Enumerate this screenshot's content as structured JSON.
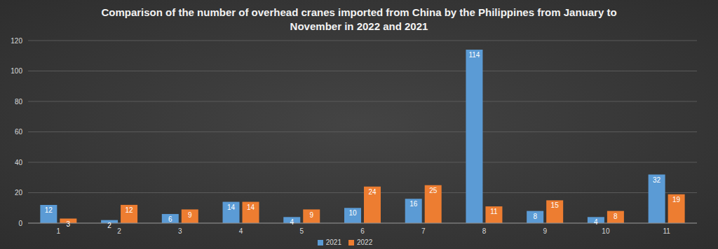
{
  "chart_data": {
    "type": "bar",
    "title": "Comparison of the number of overhead cranes imported from China by the Philippines from January to November in 2022 and 2021",
    "categories": [
      "1",
      "2",
      "3",
      "4",
      "5",
      "6",
      "7",
      "8",
      "9",
      "10",
      "11"
    ],
    "series": [
      {
        "name": "2021",
        "color": "#5b9bd5",
        "values": [
          12,
          2,
          6,
          14,
          4,
          10,
          16,
          114,
          8,
          4,
          32
        ]
      },
      {
        "name": "2022",
        "color": "#ed7d31",
        "values": [
          3,
          12,
          9,
          14,
          9,
          24,
          25,
          11,
          15,
          8,
          19
        ]
      }
    ],
    "ylim": [
      0,
      120
    ],
    "yticks": [
      0,
      20,
      40,
      60,
      80,
      100,
      120
    ],
    "grid": true,
    "legend": "bottom",
    "data_labels": true
  }
}
